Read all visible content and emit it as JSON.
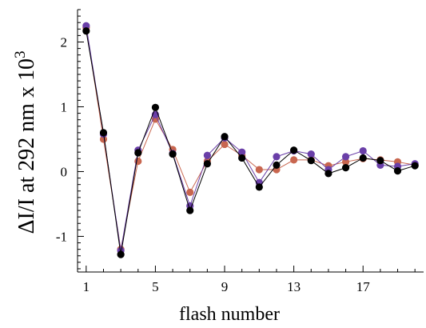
{
  "chart_data": {
    "type": "line",
    "title": "",
    "xlabel": "flash number",
    "ylabel_main": "ΔI/I at 292 nm x 10",
    "ylabel_exponent": "3",
    "xlim": [
      0.5,
      20.5
    ],
    "ylim": [
      -1.55,
      2.5
    ],
    "x_ticks": [
      1,
      5,
      9,
      13,
      17
    ],
    "y_ticks": [
      -1,
      0,
      1,
      2
    ],
    "grid": false,
    "legend": "none",
    "x": [
      1,
      2,
      3,
      4,
      5,
      6,
      7,
      8,
      9,
      10,
      11,
      12,
      13,
      14,
      15,
      16,
      17,
      18,
      19,
      20
    ],
    "series": [
      {
        "color": "#c8664f",
        "values": [
          2.22,
          0.5,
          -1.2,
          0.16,
          0.81,
          0.34,
          -0.32,
          0.16,
          0.42,
          0.25,
          0.03,
          0.03,
          0.18,
          0.18,
          0.09,
          0.15,
          0.2,
          0.18,
          0.15,
          0.1
        ]
      },
      {
        "color": "#6a3fa8",
        "values": [
          2.25,
          0.58,
          -1.22,
          0.33,
          0.88,
          0.28,
          -0.53,
          0.25,
          0.52,
          0.3,
          -0.17,
          0.23,
          0.32,
          0.27,
          0.03,
          0.23,
          0.32,
          0.1,
          0.08,
          0.12
        ]
      },
      {
        "color": "#000000",
        "values": [
          2.17,
          0.6,
          -1.28,
          0.29,
          0.99,
          0.27,
          -0.6,
          0.12,
          0.54,
          0.21,
          -0.24,
          0.1,
          0.33,
          0.17,
          -0.03,
          0.06,
          0.21,
          0.17,
          0.01,
          0.09
        ]
      }
    ]
  }
}
